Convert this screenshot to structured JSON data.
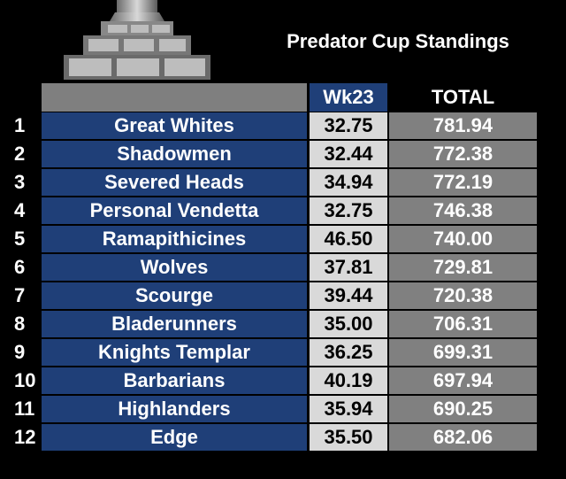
{
  "header": {
    "title": "Predator Cup Standings"
  },
  "table": {
    "columns": [
      "Wk23",
      "TOTAL"
    ],
    "rows": [
      [
        "1",
        "Great Whites",
        "32.75",
        "781.94"
      ],
      [
        "2",
        "Shadowmen",
        "32.44",
        "772.38"
      ],
      [
        "3",
        "Severed Heads",
        "34.94",
        "772.19"
      ],
      [
        "4",
        "Personal Vendetta",
        "32.75",
        "746.38"
      ],
      [
        "5",
        "Ramapithicines",
        "46.50",
        "740.00"
      ],
      [
        "6",
        "Wolves",
        "37.81",
        "729.81"
      ],
      [
        "7",
        "Scourge",
        "39.44",
        "720.38"
      ],
      [
        "8",
        "Bladerunners",
        "35.00",
        "706.31"
      ],
      [
        "9",
        "Knights Templar",
        "36.25",
        "699.31"
      ],
      [
        "10",
        "Barbarians",
        "40.19",
        "697.94"
      ],
      [
        "11",
        "Highlanders",
        "35.94",
        "690.25"
      ],
      [
        "12",
        "Edge",
        "35.50",
        "682.06"
      ]
    ]
  }
}
